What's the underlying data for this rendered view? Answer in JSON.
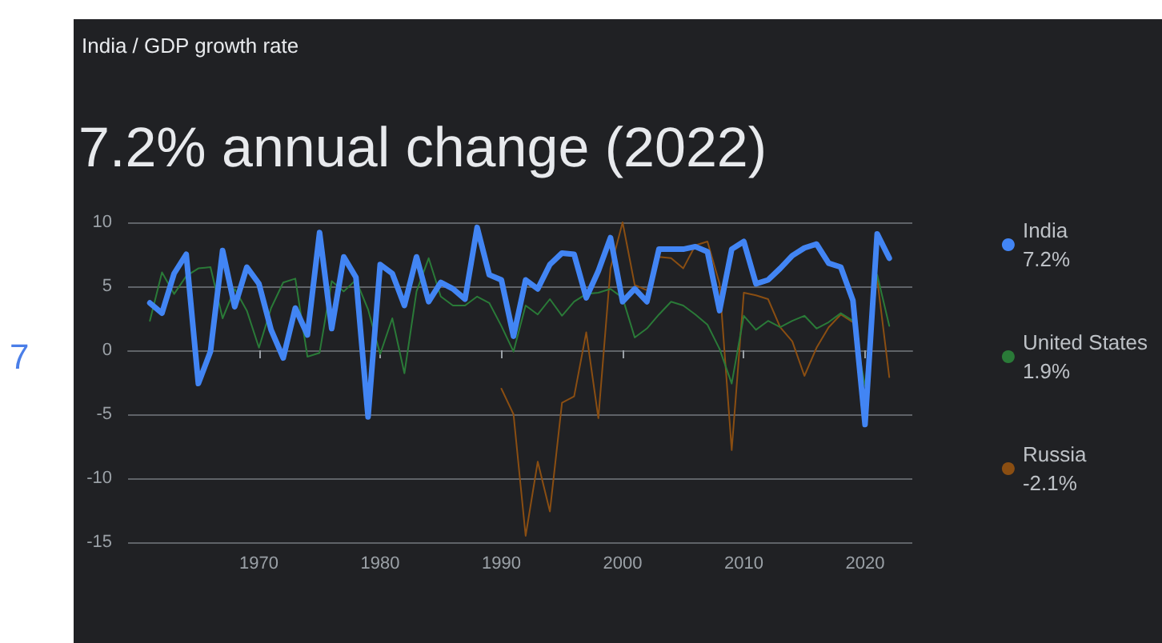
{
  "chart_data": {
    "type": "line",
    "title": "7.2% annual change (2022)",
    "subtitle": "India / GDP growth rate",
    "annotations": [
      "7",
      "7.2%",
      "1.9%",
      "-2.1%"
    ],
    "x": [
      1961,
      1962,
      1963,
      1964,
      1965,
      1966,
      1967,
      1968,
      1969,
      1970,
      1971,
      1972,
      1973,
      1974,
      1975,
      1976,
      1977,
      1978,
      1979,
      1980,
      1981,
      1982,
      1983,
      1984,
      1985,
      1986,
      1987,
      1988,
      1989,
      1990,
      1991,
      1992,
      1993,
      1994,
      1995,
      1996,
      1997,
      1998,
      1999,
      2000,
      2001,
      2002,
      2003,
      2004,
      2005,
      2006,
      2007,
      2008,
      2009,
      2010,
      2011,
      2012,
      2013,
      2014,
      2015,
      2016,
      2017,
      2018,
      2019,
      2020,
      2021,
      2022
    ],
    "series": [
      {
        "name": "India",
        "color": "#4285f4",
        "values": [
          3.7,
          2.9,
          6.0,
          7.5,
          -2.6,
          -0.1,
          7.8,
          3.4,
          6.5,
          5.2,
          1.6,
          -0.6,
          3.3,
          1.2,
          9.2,
          1.7,
          7.3,
          5.7,
          -5.2,
          6.7,
          6.0,
          3.5,
          7.3,
          3.8,
          5.3,
          4.8,
          4.0,
          9.6,
          5.9,
          5.5,
          1.1,
          5.5,
          4.8,
          6.7,
          7.6,
          7.5,
          4.1,
          6.2,
          8.8,
          3.8,
          4.8,
          3.8,
          7.9,
          7.9,
          7.9,
          8.1,
          7.7,
          3.1,
          7.9,
          8.5,
          5.2,
          5.5,
          6.4,
          7.4,
          8.0,
          8.3,
          6.8,
          6.5,
          3.9,
          -5.8,
          9.1,
          7.2
        ]
      },
      {
        "name": "United States",
        "color": "#2a7a38",
        "values": [
          2.3,
          6.1,
          4.4,
          5.8,
          6.4,
          6.5,
          2.5,
          4.8,
          3.1,
          0.2,
          3.3,
          5.3,
          5.6,
          -0.5,
          -0.2,
          5.4,
          4.6,
          5.5,
          3.2,
          -0.3,
          2.5,
          -1.8,
          4.6,
          7.2,
          4.2,
          3.5,
          3.5,
          4.2,
          3.7,
          1.9,
          -0.1,
          3.5,
          2.8,
          4.0,
          2.7,
          3.8,
          4.4,
          4.5,
          4.8,
          4.1,
          1.0,
          1.7,
          2.8,
          3.8,
          3.5,
          2.8,
          2.0,
          0.1,
          -2.6,
          2.7,
          1.6,
          2.3,
          1.8,
          2.3,
          2.7,
          1.7,
          2.2,
          2.9,
          2.3,
          -2.8,
          5.9,
          1.9
        ]
      },
      {
        "name": "Russia",
        "color": "#8a4e12",
        "values": [
          null,
          null,
          null,
          null,
          null,
          null,
          null,
          null,
          null,
          null,
          null,
          null,
          null,
          null,
          null,
          null,
          null,
          null,
          null,
          null,
          null,
          null,
          null,
          null,
          null,
          null,
          null,
          null,
          null,
          -3.0,
          -5.0,
          -14.5,
          -8.7,
          -12.6,
          -4.1,
          -3.6,
          1.4,
          -5.3,
          6.4,
          10.0,
          5.1,
          4.7,
          7.3,
          7.2,
          6.4,
          8.2,
          8.5,
          5.2,
          -7.8,
          4.5,
          4.3,
          4.0,
          1.8,
          0.7,
          -2.0,
          0.2,
          1.8,
          2.8,
          2.2,
          null,
          5.6,
          -2.1
        ]
      }
    ],
    "xlim": [
      1959.2,
      2023.9
    ],
    "xticks": [
      1970,
      1980,
      1990,
      2000,
      2010,
      2020
    ],
    "ylim": [
      -15,
      10
    ],
    "yticks": [
      -15,
      -10,
      -5,
      0,
      5,
      10
    ],
    "grid": "y",
    "legend": "right",
    "marker": "none",
    "line_style": "solid"
  }
}
